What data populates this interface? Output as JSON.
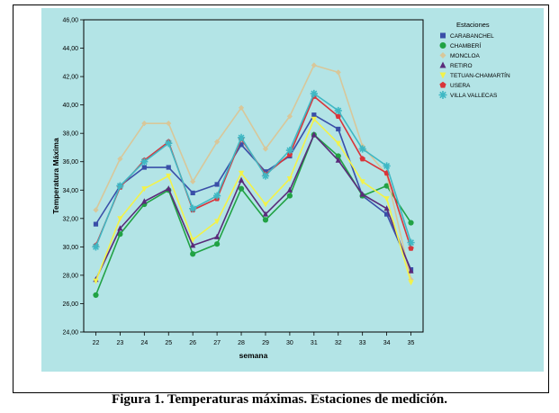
{
  "caption": "Figura 1. Temperaturas máximas. Estaciones de medición.",
  "chart_data": {
    "type": "line",
    "xlabel": "semana",
    "ylabel": "Temperatura Máxima",
    "ylim": [
      24,
      46
    ],
    "x": [
      22,
      23,
      24,
      25,
      26,
      27,
      28,
      29,
      30,
      31,
      32,
      33,
      34,
      35
    ],
    "y_ticks": [
      "24,00",
      "26,00",
      "28,00",
      "30,00",
      "32,00",
      "34,00",
      "36,00",
      "38,00",
      "40,00",
      "42,00",
      "44,00",
      "46,00"
    ],
    "background": "#b3e4e6",
    "grid": false,
    "legend": {
      "title": "Estaciones",
      "position": "top-right"
    },
    "series": [
      {
        "name": "CARABANCHEL",
        "color": "#3a4fa8",
        "marker": "square",
        "values": [
          31.6,
          34.3,
          35.6,
          35.6,
          33.8,
          34.4,
          37.2,
          35.3,
          36.4,
          39.3,
          38.3,
          33.6,
          32.3,
          28.4
        ]
      },
      {
        "name": "CHAMBERÍ",
        "color": "#21a244",
        "marker": "circle",
        "values": [
          26.6,
          30.9,
          33.0,
          34.0,
          29.5,
          30.2,
          34.1,
          31.9,
          33.6,
          37.9,
          36.4,
          33.6,
          34.3,
          31.7
        ]
      },
      {
        "name": "MONCLOA",
        "color": "#d8c79a",
        "marker": "diamond",
        "values": [
          32.6,
          36.2,
          38.7,
          38.7,
          34.6,
          37.4,
          39.8,
          36.9,
          39.2,
          42.8,
          42.3,
          37.1,
          35.1,
          27.7
        ]
      },
      {
        "name": "RETIRO",
        "color": "#5a2a7a",
        "marker": "triangle",
        "values": [
          27.7,
          31.3,
          33.2,
          34.1,
          30.1,
          30.7,
          34.7,
          32.3,
          34.0,
          37.9,
          36.1,
          33.7,
          32.7,
          28.3
        ]
      },
      {
        "name": "TETUAN-CHAMARTÍN",
        "color": "#f2f24a",
        "marker": "triangle-down",
        "values": [
          27.6,
          32.0,
          34.1,
          35.0,
          30.5,
          31.8,
          35.2,
          33.0,
          34.8,
          39.0,
          37.3,
          34.6,
          33.4,
          27.5
        ]
      },
      {
        "name": "USERA",
        "color": "#d9343a",
        "marker": "pentagon",
        "values": [
          30.1,
          34.2,
          36.1,
          37.4,
          32.6,
          33.4,
          37.6,
          35.1,
          36.5,
          40.6,
          39.2,
          36.2,
          35.2,
          29.9
        ]
      },
      {
        "name": "VILLA VALLECAS",
        "color": "#3fb8c4",
        "marker": "star",
        "values": [
          30.0,
          34.3,
          36.0,
          37.3,
          32.7,
          33.6,
          37.7,
          35.0,
          36.8,
          40.8,
          39.6,
          36.9,
          35.7,
          30.3
        ]
      }
    ]
  }
}
